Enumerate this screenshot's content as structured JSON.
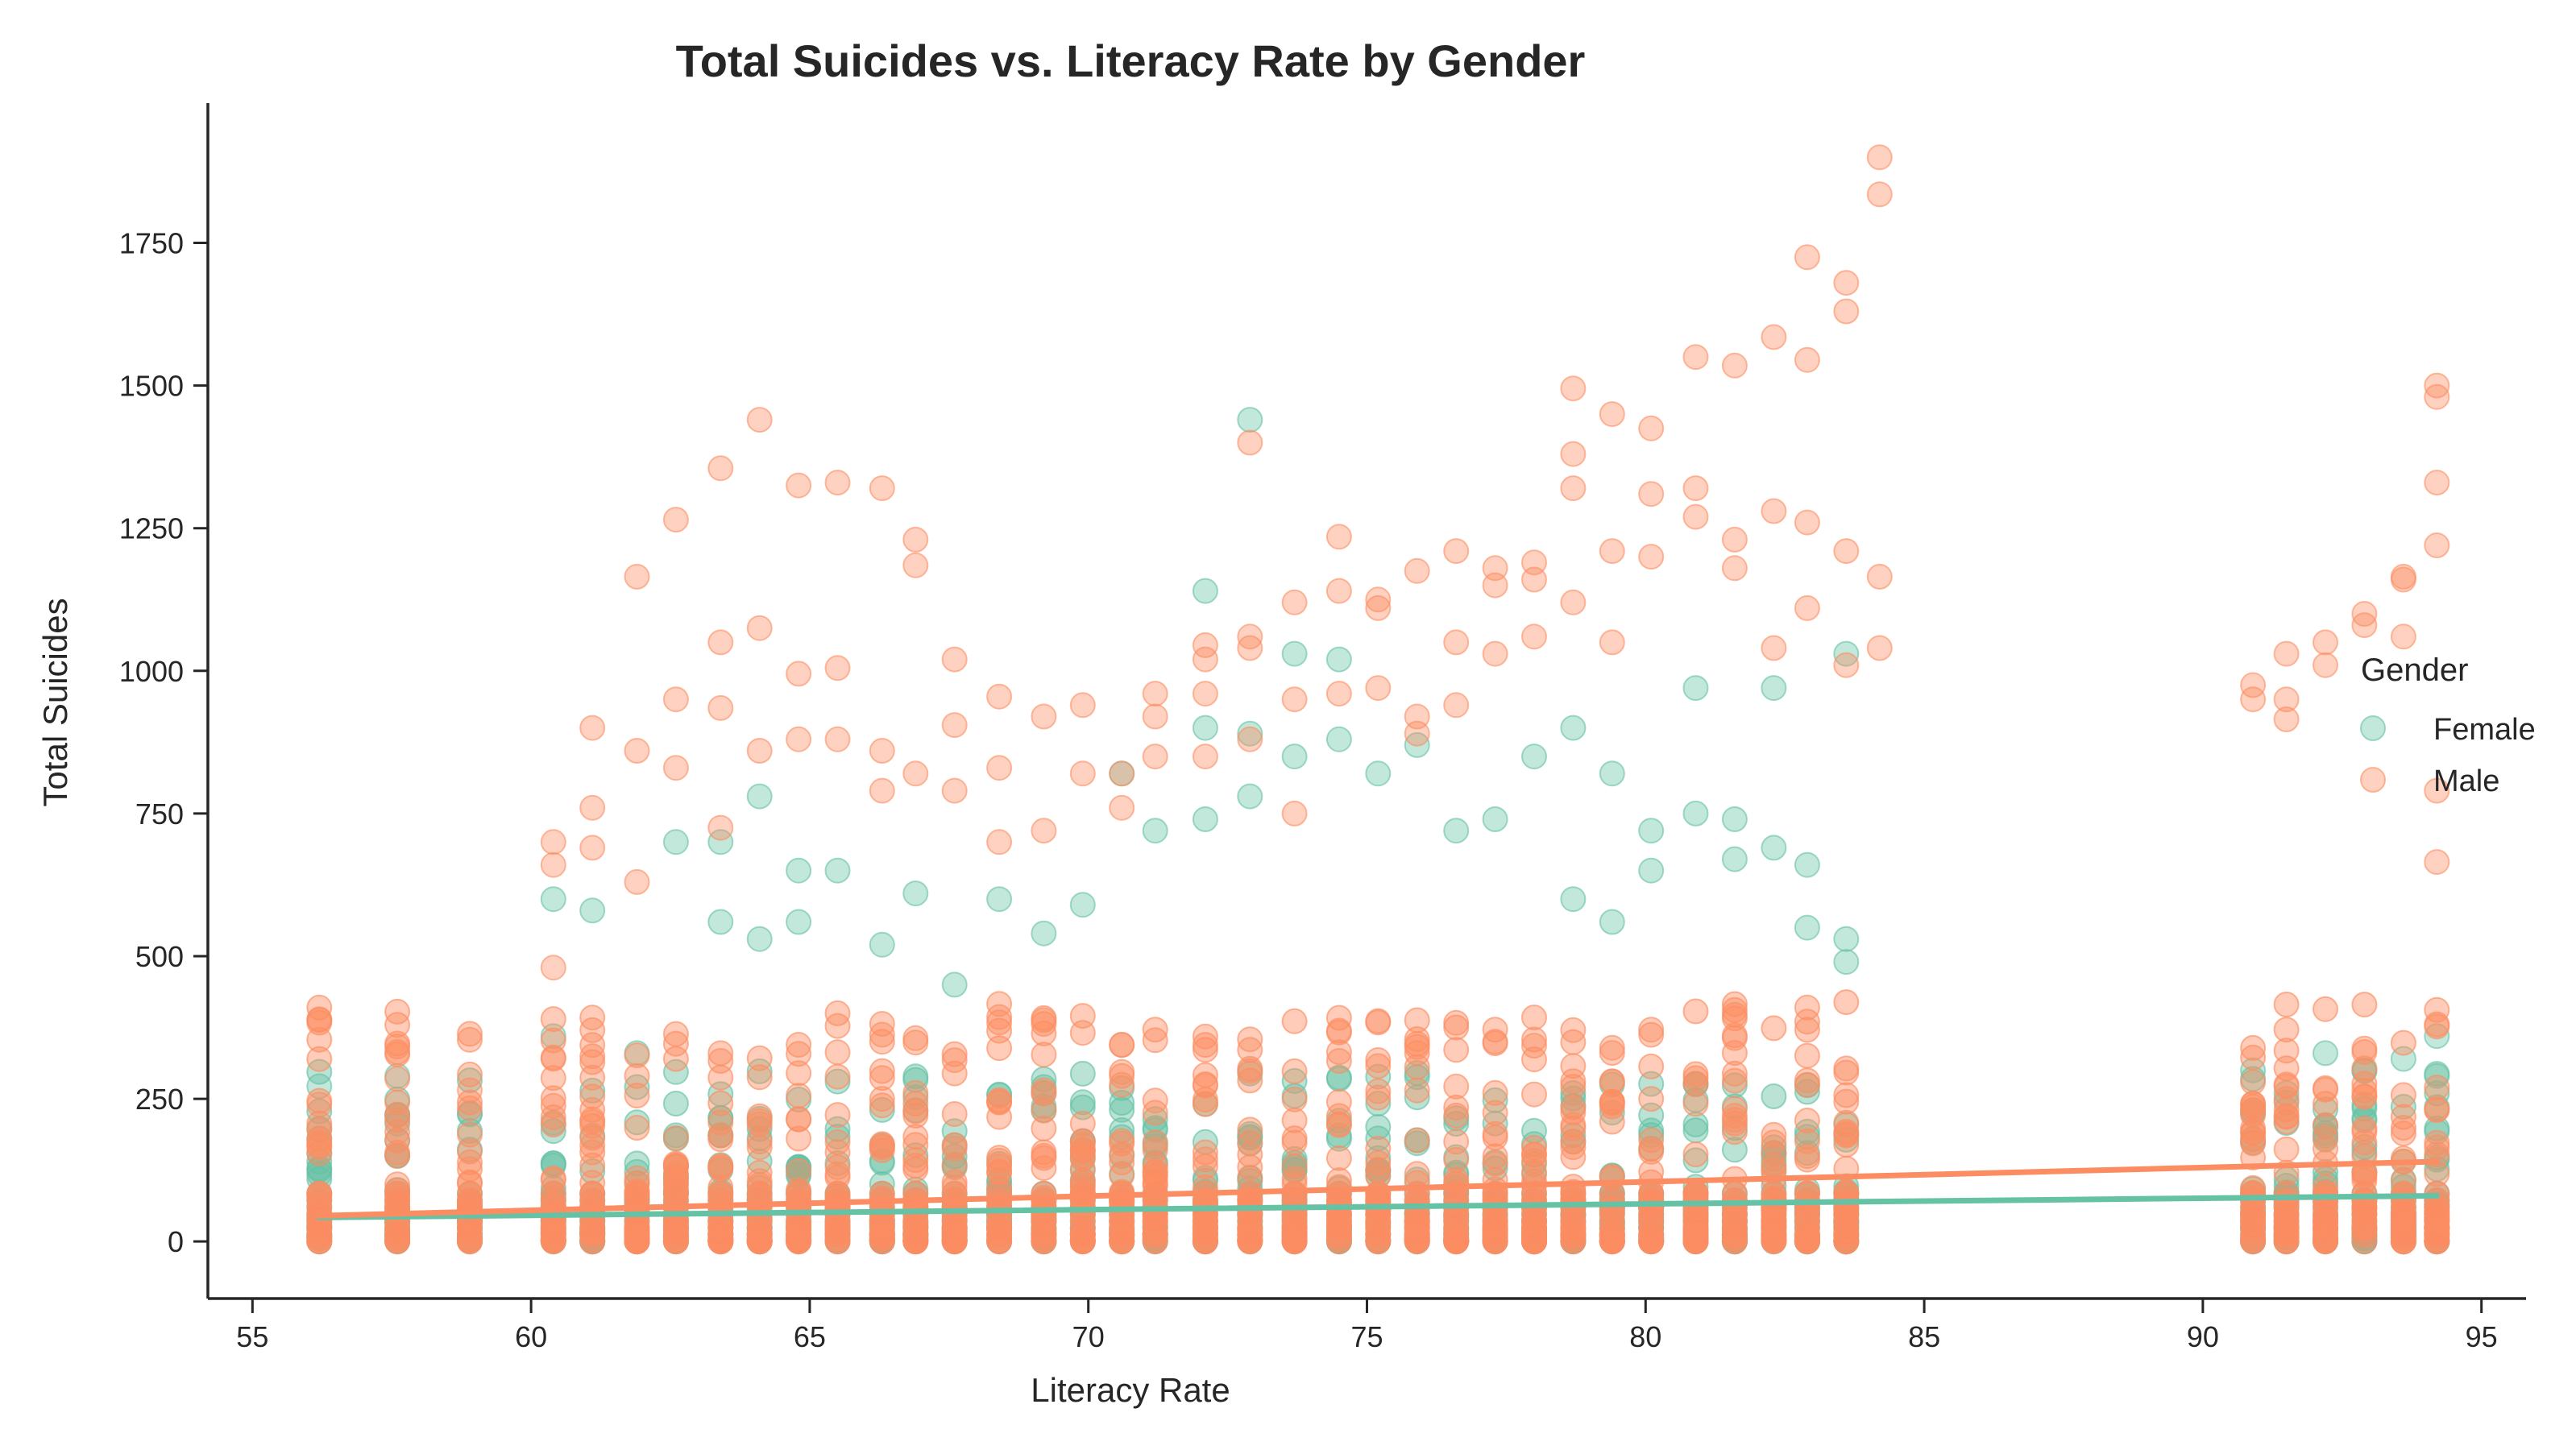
{
  "chart_data": {
    "type": "scatter",
    "title": "Total Suicides vs. Literacy Rate by Gender",
    "xlabel": "Literacy Rate",
    "ylabel": "Total Suicides",
    "xlim": [
      54.2,
      95.8
    ],
    "ylim": [
      -100,
      1995
    ],
    "xticks": [
      55,
      60,
      65,
      70,
      75,
      80,
      85,
      90,
      95
    ],
    "yticks": [
      0,
      250,
      500,
      750,
      1000,
      1250,
      1500,
      1750
    ],
    "grid": false,
    "legend": {
      "title": "Gender",
      "placement": "right"
    },
    "literacy_levels": [
      56.2,
      57.6,
      58.9,
      60.4,
      61.1,
      61.9,
      62.6,
      63.4,
      64.1,
      64.8,
      65.5,
      66.3,
      66.9,
      67.6,
      68.4,
      69.2,
      69.9,
      70.6,
      71.2,
      72.1,
      72.9,
      73.7,
      74.5,
      75.2,
      75.9,
      76.6,
      77.3,
      78.0,
      78.7,
      79.4,
      80.1,
      80.9,
      81.6,
      82.3,
      82.9,
      83.6,
      90.9,
      91.5,
      92.2,
      92.9,
      93.6,
      94.2
    ],
    "series": [
      {
        "name": "Female",
        "color": "#66c2a5",
        "trend": {
          "x": [
            56.2,
            94.2
          ],
          "y": [
            42,
            80
          ]
        },
        "points": [
          [
            56.2,
            272
          ],
          [
            57.6,
            290
          ],
          [
            57.6,
            150
          ],
          [
            58.9,
            225
          ],
          [
            60.4,
            360
          ],
          [
            60.4,
            600
          ],
          [
            61.1,
            580
          ],
          [
            61.9,
            330
          ],
          [
            62.6,
            700
          ],
          [
            63.4,
            560
          ],
          [
            63.4,
            700
          ],
          [
            64.1,
            780
          ],
          [
            64.1,
            530
          ],
          [
            64.8,
            560
          ],
          [
            64.8,
            650
          ],
          [
            65.5,
            650
          ],
          [
            66.3,
            520
          ],
          [
            66.9,
            610
          ],
          [
            67.6,
            450
          ],
          [
            68.4,
            600
          ],
          [
            69.2,
            540
          ],
          [
            69.9,
            590
          ],
          [
            70.6,
            820
          ],
          [
            71.2,
            720
          ],
          [
            72.1,
            1140
          ],
          [
            72.1,
            900
          ],
          [
            72.1,
            740
          ],
          [
            72.9,
            1440
          ],
          [
            72.9,
            890
          ],
          [
            72.9,
            780
          ],
          [
            73.7,
            1030
          ],
          [
            73.7,
            850
          ],
          [
            74.5,
            1020
          ],
          [
            74.5,
            880
          ],
          [
            75.2,
            820
          ],
          [
            75.9,
            870
          ],
          [
            76.6,
            720
          ],
          [
            77.3,
            740
          ],
          [
            78.0,
            850
          ],
          [
            78.7,
            900
          ],
          [
            78.7,
            600
          ],
          [
            79.4,
            820
          ],
          [
            79.4,
            560
          ],
          [
            80.1,
            720
          ],
          [
            80.1,
            650
          ],
          [
            80.9,
            970
          ],
          [
            80.9,
            750
          ],
          [
            81.6,
            740
          ],
          [
            81.6,
            670
          ],
          [
            82.3,
            970
          ],
          [
            82.3,
            690
          ],
          [
            82.9,
            660
          ],
          [
            82.9,
            550
          ],
          [
            83.6,
            1030
          ],
          [
            83.6,
            530
          ],
          [
            83.6,
            490
          ],
          [
            90.9,
            300
          ],
          [
            91.5,
            260
          ],
          [
            92.2,
            330
          ],
          [
            92.9,
            300
          ],
          [
            93.6,
            320
          ],
          [
            94.2,
            360
          ],
          [
            94.2,
            290
          ]
        ]
      },
      {
        "name": "Male",
        "color": "#fc8d62",
        "trend": {
          "x": [
            56.2,
            94.2
          ],
          "y": [
            45,
            140
          ]
        },
        "points": [
          [
            56.2,
            240
          ],
          [
            56.2,
            180
          ],
          [
            57.6,
            285
          ],
          [
            58.9,
            265
          ],
          [
            60.4,
            700
          ],
          [
            60.4,
            660
          ],
          [
            60.4,
            480
          ],
          [
            61.1,
            900
          ],
          [
            61.1,
            760
          ],
          [
            61.1,
            690
          ],
          [
            61.9,
            1165
          ],
          [
            61.9,
            860
          ],
          [
            61.9,
            630
          ],
          [
            62.6,
            1265
          ],
          [
            62.6,
            950
          ],
          [
            62.6,
            830
          ],
          [
            63.4,
            1355
          ],
          [
            63.4,
            1050
          ],
          [
            63.4,
            935
          ],
          [
            63.4,
            725
          ],
          [
            64.1,
            1440
          ],
          [
            64.1,
            1075
          ],
          [
            64.1,
            860
          ],
          [
            64.8,
            1325
          ],
          [
            64.8,
            995
          ],
          [
            64.8,
            880
          ],
          [
            65.5,
            1330
          ],
          [
            65.5,
            1005
          ],
          [
            65.5,
            880
          ],
          [
            66.3,
            1320
          ],
          [
            66.3,
            860
          ],
          [
            66.3,
            790
          ],
          [
            66.9,
            1230
          ],
          [
            66.9,
            1185
          ],
          [
            66.9,
            820
          ],
          [
            67.6,
            1020
          ],
          [
            67.6,
            905
          ],
          [
            67.6,
            790
          ],
          [
            68.4,
            955
          ],
          [
            68.4,
            830
          ],
          [
            68.4,
            700
          ],
          [
            69.2,
            920
          ],
          [
            69.2,
            720
          ],
          [
            69.9,
            940
          ],
          [
            69.9,
            820
          ],
          [
            70.6,
            820
          ],
          [
            70.6,
            760
          ],
          [
            71.2,
            960
          ],
          [
            71.2,
            920
          ],
          [
            71.2,
            850
          ],
          [
            72.1,
            1045
          ],
          [
            72.1,
            1020
          ],
          [
            72.1,
            960
          ],
          [
            72.1,
            850
          ],
          [
            72.9,
            1400
          ],
          [
            72.9,
            1060
          ],
          [
            72.9,
            1040
          ],
          [
            72.9,
            880
          ],
          [
            73.7,
            1120
          ],
          [
            73.7,
            950
          ],
          [
            73.7,
            750
          ],
          [
            74.5,
            1235
          ],
          [
            74.5,
            1140
          ],
          [
            74.5,
            960
          ],
          [
            75.2,
            1125
          ],
          [
            75.2,
            1110
          ],
          [
            75.2,
            970
          ],
          [
            75.9,
            1175
          ],
          [
            75.9,
            920
          ],
          [
            75.9,
            890
          ],
          [
            76.6,
            1210
          ],
          [
            76.6,
            1050
          ],
          [
            76.6,
            940
          ],
          [
            77.3,
            1180
          ],
          [
            77.3,
            1150
          ],
          [
            77.3,
            1030
          ],
          [
            78.0,
            1190
          ],
          [
            78.0,
            1160
          ],
          [
            78.0,
            1060
          ],
          [
            78.7,
            1495
          ],
          [
            78.7,
            1380
          ],
          [
            78.7,
            1320
          ],
          [
            78.7,
            1120
          ],
          [
            79.4,
            1450
          ],
          [
            79.4,
            1210
          ],
          [
            79.4,
            1050
          ],
          [
            80.1,
            1425
          ],
          [
            80.1,
            1310
          ],
          [
            80.1,
            1200
          ],
          [
            80.9,
            1550
          ],
          [
            80.9,
            1320
          ],
          [
            80.9,
            1270
          ],
          [
            81.6,
            1535
          ],
          [
            81.6,
            1230
          ],
          [
            81.6,
            1180
          ],
          [
            82.3,
            1585
          ],
          [
            82.3,
            1280
          ],
          [
            82.3,
            1040
          ],
          [
            82.9,
            1725
          ],
          [
            82.9,
            1545
          ],
          [
            82.9,
            1260
          ],
          [
            82.9,
            1110
          ],
          [
            83.6,
            1680
          ],
          [
            83.6,
            1630
          ],
          [
            83.6,
            1210
          ],
          [
            83.6,
            1010
          ],
          [
            84.2,
            1900
          ],
          [
            84.2,
            1835
          ],
          [
            84.2,
            1165
          ],
          [
            84.2,
            1040
          ],
          [
            90.9,
            975
          ],
          [
            90.9,
            950
          ],
          [
            91.5,
            1030
          ],
          [
            91.5,
            950
          ],
          [
            91.5,
            915
          ],
          [
            92.2,
            1050
          ],
          [
            92.2,
            1010
          ],
          [
            92.9,
            1100
          ],
          [
            92.9,
            1080
          ],
          [
            93.6,
            1160
          ],
          [
            93.6,
            1165
          ],
          [
            93.6,
            1060
          ],
          [
            94.2,
            1330
          ],
          [
            94.2,
            1220
          ],
          [
            94.2,
            1500
          ],
          [
            94.2,
            1480
          ],
          [
            94.2,
            790
          ],
          [
            94.2,
            665
          ]
        ]
      }
    ]
  }
}
